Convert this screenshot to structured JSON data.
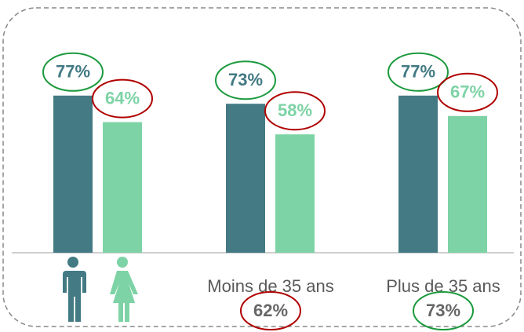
{
  "chart_data": {
    "type": "bar",
    "categories": [
      null,
      "Moins de 35 ans",
      "Plus de 35 ans"
    ],
    "series": [
      {
        "color": "#437a84",
        "highlight": "#1a9a3c",
        "values": [
          77,
          73,
          77
        ],
        "value_labels": [
          "77%",
          "73%",
          "77%"
        ]
      },
      {
        "color": "#7dd3a5",
        "highlight": "#b00000",
        "values": [
          64,
          58,
          67
        ],
        "value_labels": [
          "64%",
          "58%",
          "67%"
        ]
      }
    ],
    "totals": {
      "color": "#666666",
      "values": [
        null,
        62,
        73
      ],
      "value_labels": [
        null,
        "62%",
        "73%"
      ],
      "highlights": [
        null,
        "#b00000",
        "#1a9a3c"
      ]
    }
  }
}
